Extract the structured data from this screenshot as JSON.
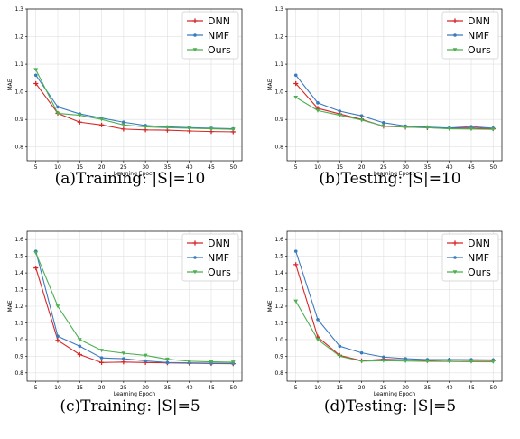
{
  "chart_data": [
    {
      "type": "line",
      "caption": "(a)Training: |S|=10",
      "xlabel": "Learning Epoch",
      "ylabel": "MAE",
      "x": [
        5,
        10,
        15,
        20,
        25,
        30,
        35,
        40,
        45,
        50
      ],
      "xlim": [
        3,
        52
      ],
      "ylim": [
        0.75,
        1.3
      ],
      "yticks": [
        "0.8",
        "0.9",
        "1.0",
        "1.1",
        "1.2",
        "1.3"
      ],
      "ytick_values": [
        0.8,
        0.9,
        1.0,
        1.1,
        1.2,
        1.3
      ],
      "grid": true,
      "legend": "top-right",
      "series": [
        {
          "name": "DNN",
          "color": "#d62728",
          "marker": "plus",
          "values": [
            1.03,
            0.922,
            0.89,
            0.88,
            0.865,
            0.862,
            0.861,
            0.858,
            0.856,
            0.855
          ]
        },
        {
          "name": "NMF",
          "color": "#3a7bbf",
          "marker": "circle",
          "values": [
            1.06,
            0.945,
            0.92,
            0.905,
            0.89,
            0.878,
            0.873,
            0.87,
            0.868,
            0.866
          ]
        },
        {
          "name": "Ours",
          "color": "#4caf50",
          "marker": "triangle",
          "values": [
            1.08,
            0.922,
            0.915,
            0.9,
            0.88,
            0.873,
            0.87,
            0.868,
            0.866,
            0.864
          ]
        }
      ]
    },
    {
      "type": "line",
      "caption": "(b)Testing: |S|=10",
      "xlabel": "Learning Epoch",
      "ylabel": "MAE",
      "x": [
        5,
        10,
        15,
        20,
        25,
        30,
        35,
        40,
        45,
        50
      ],
      "xlim": [
        3,
        52
      ],
      "ylim": [
        0.75,
        1.3
      ],
      "yticks": [
        "0.8",
        "0.9",
        "1.0",
        "1.1",
        "1.2",
        "1.3"
      ],
      "ytick_values": [
        0.8,
        0.9,
        1.0,
        1.1,
        1.2,
        1.3
      ],
      "grid": true,
      "legend": "top-right",
      "series": [
        {
          "name": "DNN",
          "color": "#d62728",
          "marker": "plus",
          "values": [
            1.03,
            0.94,
            0.92,
            0.9,
            0.875,
            0.872,
            0.87,
            0.868,
            0.869,
            0.866
          ]
        },
        {
          "name": "NMF",
          "color": "#3a7bbf",
          "marker": "circle",
          "values": [
            1.06,
            0.96,
            0.93,
            0.913,
            0.888,
            0.876,
            0.872,
            0.869,
            0.874,
            0.868
          ]
        },
        {
          "name": "Ours",
          "color": "#4caf50",
          "marker": "triangle",
          "values": [
            0.98,
            0.932,
            0.915,
            0.898,
            0.876,
            0.872,
            0.87,
            0.866,
            0.865,
            0.864
          ]
        }
      ]
    },
    {
      "type": "line",
      "caption": "(c)Training: |S|=5",
      "xlabel": "Learning Epoch",
      "ylabel": "MAE",
      "x": [
        5,
        10,
        15,
        20,
        25,
        30,
        35,
        40,
        45,
        50
      ],
      "xlim": [
        3,
        52
      ],
      "ylim": [
        0.75,
        1.65
      ],
      "yticks": [
        "0.8",
        "0.9",
        "1.0",
        "1.1",
        "1.2",
        "1.3",
        "1.4",
        "1.5",
        "1.6"
      ],
      "ytick_values": [
        0.8,
        0.9,
        1.0,
        1.1,
        1.2,
        1.3,
        1.4,
        1.5,
        1.6
      ],
      "grid": true,
      "legend": "top-right",
      "series": [
        {
          "name": "DNN",
          "color": "#d62728",
          "marker": "plus",
          "values": [
            1.43,
            0.995,
            0.91,
            0.862,
            0.865,
            0.862,
            0.86,
            0.858,
            0.856,
            0.855
          ]
        },
        {
          "name": "NMF",
          "color": "#3a7bbf",
          "marker": "circle",
          "values": [
            1.53,
            1.02,
            0.96,
            0.89,
            0.885,
            0.872,
            0.862,
            0.86,
            0.858,
            0.857
          ]
        },
        {
          "name": "Ours",
          "color": "#4caf50",
          "marker": "triangle",
          "values": [
            1.52,
            1.2,
            1.0,
            0.935,
            0.918,
            0.905,
            0.882,
            0.87,
            0.866,
            0.864
          ]
        }
      ]
    },
    {
      "type": "line",
      "caption": "(d)Testing: |S|=5",
      "xlabel": "Learning Epoch",
      "ylabel": "MAE",
      "x": [
        5,
        10,
        15,
        20,
        25,
        30,
        35,
        40,
        45,
        50
      ],
      "xlim": [
        3,
        52
      ],
      "ylim": [
        0.75,
        1.65
      ],
      "yticks": [
        "0.8",
        "0.9",
        "1.0",
        "1.1",
        "1.2",
        "1.3",
        "1.4",
        "1.5",
        "1.6"
      ],
      "ytick_values": [
        0.8,
        0.9,
        1.0,
        1.1,
        1.2,
        1.3,
        1.4,
        1.5,
        1.6
      ],
      "grid": true,
      "legend": "top-right",
      "series": [
        {
          "name": "DNN",
          "color": "#d62728",
          "marker": "plus",
          "values": [
            1.45,
            1.015,
            0.905,
            0.873,
            0.882,
            0.878,
            0.874,
            0.877,
            0.875,
            0.874
          ]
        },
        {
          "name": "NMF",
          "color": "#3a7bbf",
          "marker": "circle",
          "values": [
            1.53,
            1.12,
            0.96,
            0.92,
            0.895,
            0.885,
            0.88,
            0.88,
            0.879,
            0.878
          ]
        },
        {
          "name": "Ours",
          "color": "#4caf50",
          "marker": "triangle",
          "values": [
            1.23,
            1.0,
            0.9,
            0.87,
            0.873,
            0.871,
            0.869,
            0.868,
            0.867,
            0.866
          ]
        }
      ]
    }
  ]
}
